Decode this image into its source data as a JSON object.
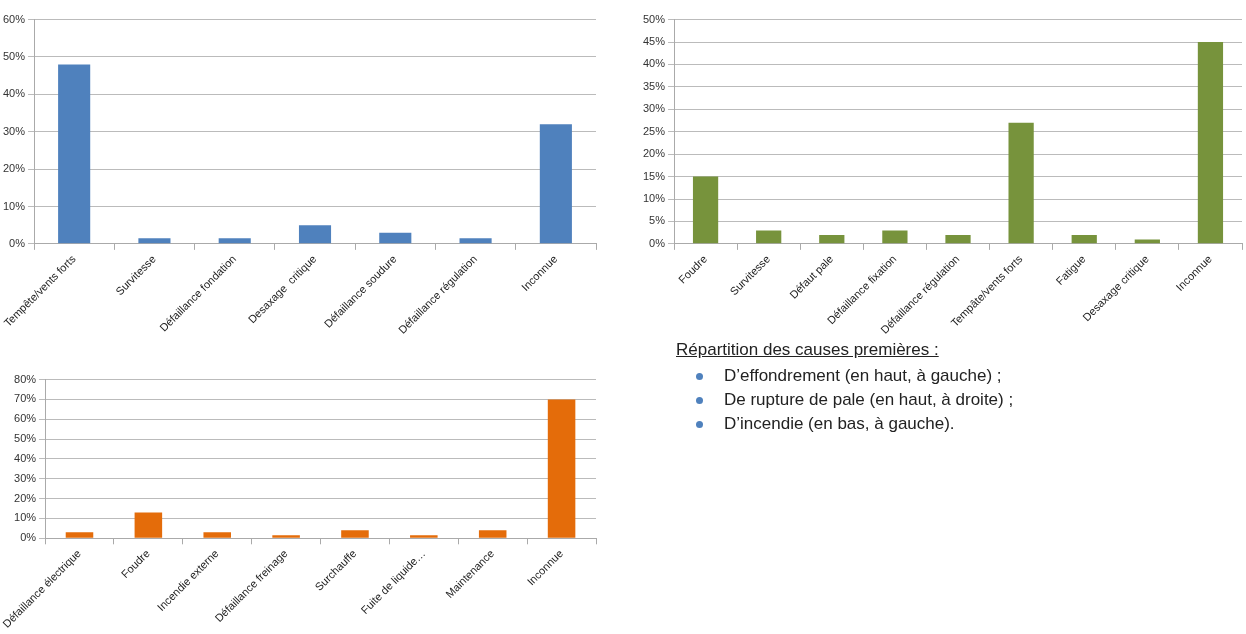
{
  "chart_data": [
    {
      "type": "bar",
      "categories": [
        "Tempête/vents forts",
        "Survitesse",
        "Défaillance fondation",
        "Desaxage  critique",
        "Défaillance soudure",
        "Défaillance régulation",
        "Inconnue"
      ],
      "values": [
        48,
        1.5,
        1.5,
        5,
        3,
        1.5,
        32
      ],
      "color": "#4f81bd",
      "ylim": [
        0,
        60
      ],
      "yticks": [
        {
          "value": 0,
          "label": "0%"
        },
        {
          "value": 10,
          "label": "10%"
        },
        {
          "value": 20,
          "label": "20%"
        },
        {
          "value": 30,
          "label": "30%"
        },
        {
          "value": 40,
          "label": "40%"
        },
        {
          "value": 50,
          "label": "50%"
        },
        {
          "value": 60,
          "label": "60%"
        }
      ],
      "grid": "y"
    },
    {
      "type": "bar",
      "categories": [
        "Foudre",
        "Survitesse",
        "Défaut pale",
        "Défaillance fixation",
        "Défaillance régulation",
        "Tempâte/vents forts",
        "Fatigue",
        "Desaxage critique",
        "Inconnue"
      ],
      "values": [
        15,
        3,
        2,
        3,
        2,
        27,
        2,
        1,
        45
      ],
      "color": "#77933c",
      "ylim": [
        0,
        50
      ],
      "yticks": [
        {
          "value": 0,
          "label": "0%"
        },
        {
          "value": 5,
          "label": "5%"
        },
        {
          "value": 10,
          "label": "10%"
        },
        {
          "value": 15,
          "label": "15%"
        },
        {
          "value": 20,
          "label": "20%"
        },
        {
          "value": 25,
          "label": "25%"
        },
        {
          "value": 30,
          "label": "30%"
        },
        {
          "value": 35,
          "label": "35%"
        },
        {
          "value": 40,
          "label": "40%"
        },
        {
          "value": 45,
          "label": "45%"
        },
        {
          "value": 50,
          "label": "50%"
        }
      ],
      "grid": "y"
    },
    {
      "type": "bar",
      "categories": [
        "Défaillance électrique",
        "Foudre",
        "Incendie externe",
        "Défaillance freinage",
        "Surchauffe",
        "Fuite de liquide…",
        "Maintenance",
        "Inconnue"
      ],
      "values": [
        3,
        13,
        3,
        1.5,
        4,
        1.5,
        4,
        70
      ],
      "color": "#e46c0a",
      "ylim": [
        0,
        80
      ],
      "yticks": [
        {
          "value": 0,
          "label": "0%"
        },
        {
          "value": 10,
          "label": "10%"
        },
        {
          "value": 20,
          "label": "20%"
        },
        {
          "value": 30,
          "label": "30%"
        },
        {
          "value": 40,
          "label": "40%"
        },
        {
          "value": 50,
          "label": "50%"
        },
        {
          "value": 60,
          "label": "60%"
        },
        {
          "value": 70,
          "label": "70%"
        },
        {
          "value": 80,
          "label": "80%"
        }
      ],
      "grid": "y"
    },
    {
      "type": "other",
      "title": "Répartition des causes premières :",
      "annotations": [
        "D’effondrement (en haut, à gauche) ;",
        "De rupture de pale (en haut, à droite) ;",
        "D’incendie (en bas, à gauche)."
      ]
    }
  ]
}
